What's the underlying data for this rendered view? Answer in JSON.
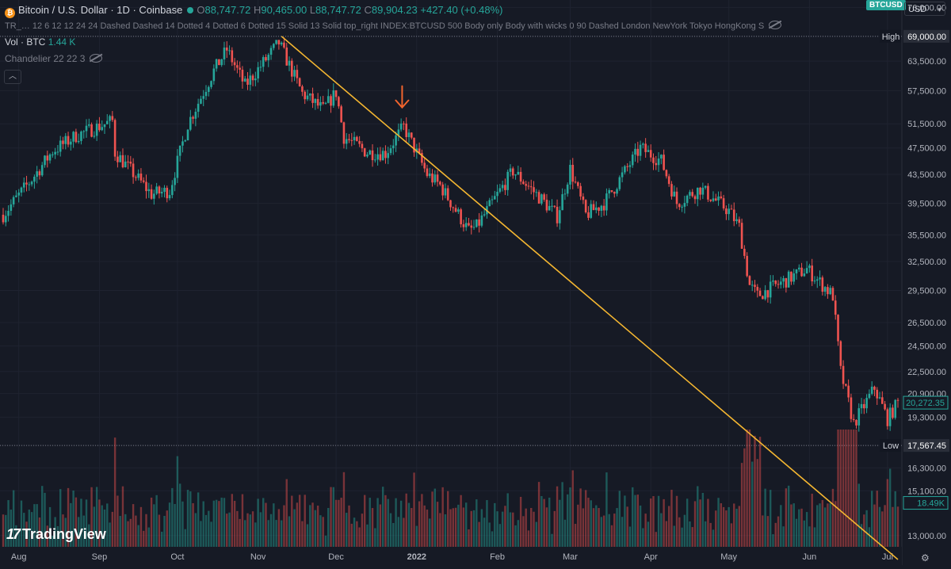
{
  "header": {
    "coin_icon": "bitcoin-icon",
    "symbol_title": "Bitcoin / U.S. Dollar · 1D · Coinbase",
    "open_label": "O",
    "open": "88,747.72",
    "high_label": "H",
    "high": "90,465.00",
    "low_label": "L",
    "low": "88,747.72",
    "close_label": "C",
    "close": "89,904.23",
    "change": "+427.40 (+0.48%)",
    "indicators_line": "TR_… 12 6 12 12 24 24 Dashed Dashed 14 Dotted 4 Dotted 6 Dotted 15 Solid 13 Solid top_right INDEX:BTCUSD 500 Body only Body with wicks 0 90 Dashed London NewYork Tokyo HongKong S",
    "volume_label": "Vol · BTC",
    "volume_value": "1.44 K",
    "chandelier": "Chandelier 22 22 3"
  },
  "symbol_badge": "BTCUSD",
  "currency": "USD",
  "branding": {
    "logo_mark": "17",
    "name": "TradingView"
  },
  "colors": {
    "background": "#161a25",
    "up": "#26a69a",
    "down": "#ef5350",
    "trendline": "#f5b731",
    "arrow": "#f0642d",
    "grid": "#1f2330"
  },
  "chart_data": {
    "type": "candlestick",
    "instrument": "BTCUSD",
    "timeframe": "1D",
    "yscale": "log",
    "ylim": [
      12000,
      80000
    ],
    "y_ticks": [
      76000,
      69000,
      63500,
      57500,
      51500,
      47500,
      43500,
      39500,
      35500,
      32500,
      29500,
      26500,
      24500,
      22500,
      20900,
      19300,
      17567.45,
      16300,
      15100,
      13000
    ],
    "y_tick_labels": [
      "76,000.00",
      "",
      "63,500.00",
      "57,500.00",
      "51,500.00",
      "47,500.00",
      "43,500.00",
      "39,500.00",
      "35,500.00",
      "32,500.00",
      "29,500.00",
      "26,500.00",
      "24,500.00",
      "22,500.00",
      "20,900.00",
      "19,300.00",
      "",
      "16,300.00",
      "15,100.00",
      "13,000.00"
    ],
    "x_ticks": [
      "Aug",
      "Sep",
      "Oct",
      "Nov",
      "Dec",
      "2022",
      "Feb",
      "Mar",
      "Apr",
      "May",
      "Jun",
      "Jul"
    ],
    "x_tick_dates": [
      "2021-08-01",
      "2021-09-01",
      "2021-10-01",
      "2021-11-01",
      "2021-12-01",
      "2022-01-01",
      "2022-02-01",
      "2022-03-01",
      "2022-04-01",
      "2022-05-01",
      "2022-06-01",
      "2022-07-01"
    ],
    "price_anchors": [
      {
        "date": "2021-07-26",
        "close": 38000
      },
      {
        "date": "2021-08-06",
        "close": 42800
      },
      {
        "date": "2021-08-14",
        "close": 47000
      },
      {
        "date": "2021-08-23",
        "close": 49500
      },
      {
        "date": "2021-09-06",
        "close": 52000
      },
      {
        "date": "2021-09-07",
        "close": 46800
      },
      {
        "date": "2021-09-21",
        "close": 40700
      },
      {
        "date": "2021-09-28",
        "close": 41200
      },
      {
        "date": "2021-10-05",
        "close": 51500
      },
      {
        "date": "2021-10-15",
        "close": 61500
      },
      {
        "date": "2021-10-20",
        "close": 66000
      },
      {
        "date": "2021-10-27",
        "close": 58500
      },
      {
        "date": "2021-11-09",
        "close": 67500
      },
      {
        "date": "2021-11-18",
        "close": 57000
      },
      {
        "date": "2021-11-26",
        "close": 54000
      },
      {
        "date": "2021-12-01",
        "close": 57200
      },
      {
        "date": "2021-12-04",
        "close": 49300
      },
      {
        "date": "2021-12-13",
        "close": 46800
      },
      {
        "date": "2021-12-20",
        "close": 46700
      },
      {
        "date": "2021-12-27",
        "close": 51000
      },
      {
        "date": "2022-01-05",
        "close": 43500
      },
      {
        "date": "2022-01-10",
        "close": 41900
      },
      {
        "date": "2022-01-21",
        "close": 36000
      },
      {
        "date": "2022-01-24",
        "close": 36500
      },
      {
        "date": "2022-02-07",
        "close": 44000
      },
      {
        "date": "2022-02-18",
        "close": 40000
      },
      {
        "date": "2022-02-24",
        "close": 37800
      },
      {
        "date": "2022-03-01",
        "close": 44300
      },
      {
        "date": "2022-03-07",
        "close": 38000
      },
      {
        "date": "2022-03-14",
        "close": 39500
      },
      {
        "date": "2022-03-28",
        "close": 47500
      },
      {
        "date": "2022-04-05",
        "close": 45500
      },
      {
        "date": "2022-04-11",
        "close": 39500
      },
      {
        "date": "2022-04-20",
        "close": 41500
      },
      {
        "date": "2022-05-01",
        "close": 38500
      },
      {
        "date": "2022-05-05",
        "close": 36500
      },
      {
        "date": "2022-05-09",
        "close": 30000
      },
      {
        "date": "2022-05-12",
        "close": 29000
      },
      {
        "date": "2022-05-31",
        "close": 31700
      },
      {
        "date": "2022-06-10",
        "close": 29000
      },
      {
        "date": "2022-06-13",
        "close": 22500
      },
      {
        "date": "2022-06-18",
        "close": 18900
      },
      {
        "date": "2022-06-26",
        "close": 21300
      },
      {
        "date": "2022-07-01",
        "close": 19200
      },
      {
        "date": "2022-07-05",
        "close": 20272.35
      }
    ],
    "price_labels": [
      {
        "label": "High",
        "value": "69,000.00",
        "price": 69000,
        "style": "high"
      },
      {
        "label": "",
        "value": "20,272.35",
        "price": 20272.35,
        "style": "last"
      },
      {
        "label": "Low",
        "value": "17,567.45",
        "price": 17567.45,
        "style": "low"
      },
      {
        "label": "",
        "value": "18.49K",
        "price": 14500,
        "style": "volume"
      }
    ],
    "reference_lines": [
      {
        "name": "high",
        "price": 69000,
        "style": "dotted"
      },
      {
        "name": "low",
        "price": 17567.45,
        "style": "dotted"
      }
    ],
    "trendline": {
      "start": {
        "date": "2021-11-10",
        "price": 69000
      },
      "end": {
        "date": "2022-07-05",
        "price": 12000
      }
    },
    "annotation": {
      "type": "arrow-down",
      "date": "2021-12-27",
      "price": 57500
    },
    "volume_axis_level": 18490
  }
}
